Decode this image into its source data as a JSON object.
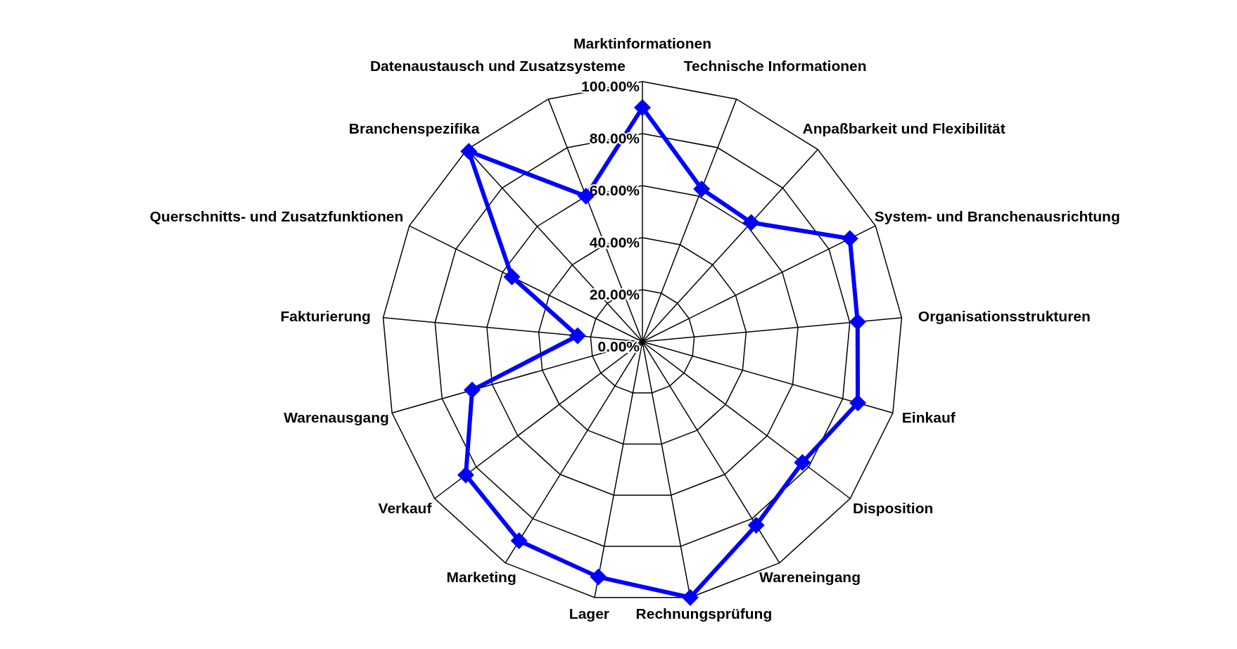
{
  "chart_data": {
    "type": "radar",
    "categories": [
      "Marktinformationen",
      "Technische Informationen",
      "Anpaßbarkeit und Flexibilität",
      "System- und Branchenausrichtung",
      "Organisationsstrukturen",
      "Einkauf",
      "Disposition",
      "Wareneingang",
      "Rechnungsprüfung",
      "Lager",
      "Marketing",
      "Verkauf",
      "Warenausgang",
      "Fakturierung",
      "Querschnitts- und Zusatzfunktionen",
      "Branchenspezifika",
      "Datenaustausch und Zusatzsysteme"
    ],
    "series": [
      {
        "color": "#0000ff",
        "values": [
          90,
          63,
          62,
          89,
          83,
          86,
          77,
          83,
          100,
          92,
          90,
          85,
          68,
          25,
          56,
          99,
          60
        ]
      }
    ],
    "ylim": [
      0,
      100
    ],
    "yticks": [
      {
        "value": 0,
        "label": "0.00%"
      },
      {
        "value": 20,
        "label": "20.00%"
      },
      {
        "value": 40,
        "label": "40.00%"
      },
      {
        "value": 60,
        "label": "60.00%"
      },
      {
        "value": 80,
        "label": "80.00%"
      },
      {
        "value": 100,
        "label": "100.00%"
      }
    ],
    "grid": true,
    "marker": "diamond",
    "legend": false
  }
}
